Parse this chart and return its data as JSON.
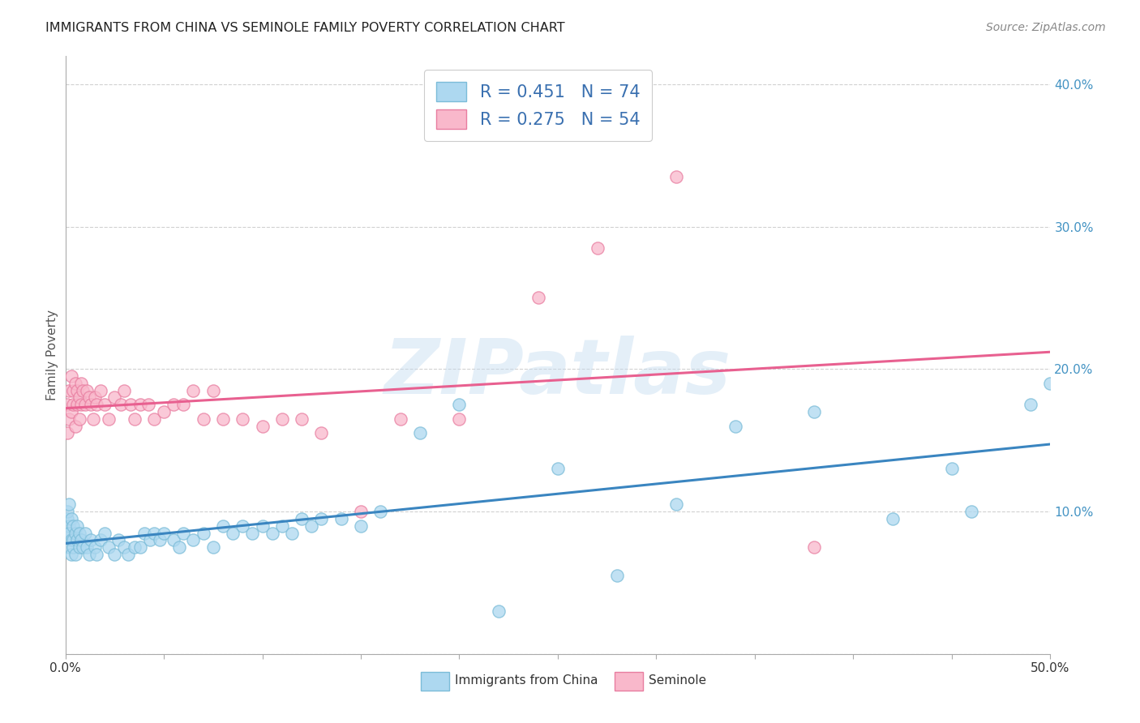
{
  "title": "IMMIGRANTS FROM CHINA VS SEMINOLE FAMILY POVERTY CORRELATION CHART",
  "source": "Source: ZipAtlas.com",
  "ylabel": "Family Poverty",
  "x_min": 0.0,
  "x_max": 0.5,
  "y_min": 0.0,
  "y_max": 0.42,
  "china_color": "#ADD8F0",
  "china_edge_color": "#7BBCD8",
  "seminole_color": "#F9B8CB",
  "seminole_edge_color": "#E87DA0",
  "china_line_color": "#3A85C0",
  "seminole_line_color": "#E86090",
  "china_R": 0.451,
  "china_N": 74,
  "seminole_R": 0.275,
  "seminole_N": 54,
  "watermark": "ZIPatlas",
  "legend_label_china": "Immigrants from China",
  "legend_label_seminole": "Seminole",
  "china_scatter_x": [
    0.001,
    0.001,
    0.001,
    0.002,
    0.002,
    0.002,
    0.002,
    0.003,
    0.003,
    0.003,
    0.004,
    0.004,
    0.004,
    0.005,
    0.005,
    0.006,
    0.006,
    0.007,
    0.007,
    0.008,
    0.009,
    0.01,
    0.011,
    0.012,
    0.013,
    0.015,
    0.016,
    0.018,
    0.02,
    0.022,
    0.025,
    0.027,
    0.03,
    0.032,
    0.035,
    0.038,
    0.04,
    0.043,
    0.045,
    0.048,
    0.05,
    0.055,
    0.058,
    0.06,
    0.065,
    0.07,
    0.075,
    0.08,
    0.085,
    0.09,
    0.095,
    0.1,
    0.105,
    0.11,
    0.115,
    0.12,
    0.125,
    0.13,
    0.14,
    0.15,
    0.16,
    0.18,
    0.2,
    0.22,
    0.25,
    0.28,
    0.31,
    0.34,
    0.38,
    0.42,
    0.45,
    0.46,
    0.49,
    0.5
  ],
  "china_scatter_y": [
    0.095,
    0.1,
    0.085,
    0.09,
    0.105,
    0.075,
    0.085,
    0.08,
    0.095,
    0.07,
    0.09,
    0.08,
    0.075,
    0.085,
    0.07,
    0.08,
    0.09,
    0.075,
    0.085,
    0.08,
    0.075,
    0.085,
    0.075,
    0.07,
    0.08,
    0.075,
    0.07,
    0.08,
    0.085,
    0.075,
    0.07,
    0.08,
    0.075,
    0.07,
    0.075,
    0.075,
    0.085,
    0.08,
    0.085,
    0.08,
    0.085,
    0.08,
    0.075,
    0.085,
    0.08,
    0.085,
    0.075,
    0.09,
    0.085,
    0.09,
    0.085,
    0.09,
    0.085,
    0.09,
    0.085,
    0.095,
    0.09,
    0.095,
    0.095,
    0.09,
    0.1,
    0.155,
    0.175,
    0.03,
    0.13,
    0.055,
    0.105,
    0.16,
    0.17,
    0.095,
    0.13,
    0.1,
    0.175,
    0.19
  ],
  "seminole_scatter_x": [
    0.001,
    0.001,
    0.002,
    0.002,
    0.003,
    0.003,
    0.004,
    0.004,
    0.005,
    0.005,
    0.006,
    0.006,
    0.007,
    0.007,
    0.008,
    0.008,
    0.009,
    0.01,
    0.011,
    0.012,
    0.013,
    0.014,
    0.015,
    0.016,
    0.018,
    0.02,
    0.022,
    0.025,
    0.028,
    0.03,
    0.033,
    0.035,
    0.038,
    0.042,
    0.045,
    0.05,
    0.055,
    0.06,
    0.065,
    0.07,
    0.075,
    0.08,
    0.09,
    0.1,
    0.11,
    0.12,
    0.13,
    0.15,
    0.17,
    0.2,
    0.24,
    0.27,
    0.31,
    0.38
  ],
  "seminole_scatter_y": [
    0.155,
    0.175,
    0.165,
    0.185,
    0.17,
    0.195,
    0.185,
    0.175,
    0.19,
    0.16,
    0.175,
    0.185,
    0.165,
    0.18,
    0.175,
    0.19,
    0.185,
    0.175,
    0.185,
    0.18,
    0.175,
    0.165,
    0.18,
    0.175,
    0.185,
    0.175,
    0.165,
    0.18,
    0.175,
    0.185,
    0.175,
    0.165,
    0.175,
    0.175,
    0.165,
    0.17,
    0.175,
    0.175,
    0.185,
    0.165,
    0.185,
    0.165,
    0.165,
    0.16,
    0.165,
    0.165,
    0.155,
    0.1,
    0.165,
    0.165,
    0.25,
    0.285,
    0.335,
    0.075
  ]
}
